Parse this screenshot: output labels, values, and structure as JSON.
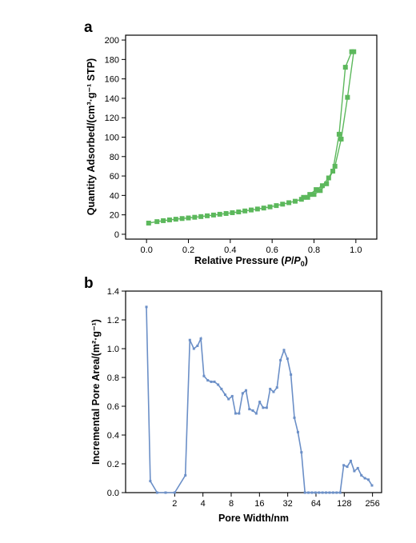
{
  "chart_data": [
    {
      "panel": "a",
      "type": "line",
      "xlabel_parts": [
        "Relative Pressure (",
        "P",
        "/",
        "P",
        "0",
        ")"
      ],
      "ylabel": "Quantity Adsorbed/(cm³·g⁻¹ STP)",
      "xlim": [
        -0.1,
        1.1
      ],
      "ylim": [
        -5,
        205
      ],
      "xticks": [
        0.0,
        0.2,
        0.4,
        0.6,
        0.8,
        1.0
      ],
      "xtick_labels": [
        "0.0",
        "0.2",
        "0.4",
        "0.6",
        "0.8",
        "1.0"
      ],
      "yticks": [
        0,
        20,
        40,
        60,
        80,
        100,
        120,
        140,
        160,
        180,
        200
      ],
      "ytick_labels": [
        "0",
        "20",
        "40",
        "60",
        "80",
        "100",
        "120",
        "140",
        "160",
        "180",
        "200"
      ],
      "color": "#5cb85c",
      "series": [
        {
          "x": [
            0.01,
            0.05,
            0.08,
            0.11,
            0.14,
            0.17,
            0.2,
            0.23,
            0.26,
            0.29,
            0.32,
            0.35,
            0.38,
            0.41,
            0.44,
            0.47,
            0.5,
            0.53,
            0.56,
            0.59,
            0.62,
            0.65,
            0.68,
            0.71,
            0.74,
            0.77,
            0.8,
            0.83,
            0.86,
            0.89,
            0.92,
            0.95,
            0.98
          ],
          "y": [
            11.5,
            13,
            14,
            14.8,
            15.5,
            16.2,
            16.8,
            17.5,
            18.2,
            19,
            19.8,
            20.6,
            21.4,
            22.2,
            23,
            24,
            25,
            26,
            27,
            28.2,
            29.5,
            31,
            32.5,
            34,
            36,
            38,
            41,
            45,
            52,
            65,
            103,
            172,
            188
          ]
        },
        {
          "x": [
            0.99,
            0.96,
            0.93,
            0.9,
            0.87,
            0.84,
            0.81,
            0.78,
            0.75
          ],
          "y": [
            188,
            141,
            98,
            70,
            58,
            50,
            46,
            41,
            38
          ]
        }
      ]
    },
    {
      "panel": "b",
      "type": "line",
      "xlabel": "Pore Width/nm",
      "ylabel": "Incremental Pore Area/(m²·g⁻¹)",
      "xscale": "log2",
      "xlim": [
        0.6,
        320
      ],
      "ylim": [
        0,
        1.4
      ],
      "xticks": [
        2,
        4,
        8,
        16,
        32,
        64,
        128,
        256
      ],
      "xtick_labels": [
        "2",
        "4",
        "8",
        "16",
        "32",
        "64",
        "128",
        "256"
      ],
      "yticks": [
        0.0,
        0.2,
        0.4,
        0.6,
        0.8,
        1.0,
        1.2,
        1.4
      ],
      "ytick_labels": [
        "0.0",
        "0.2",
        "0.4",
        "0.6",
        "0.8",
        "1.0",
        "1.2",
        "1.4"
      ],
      "color": "#6b8fc7",
      "series": [
        {
          "x": [
            1.0,
            1.1,
            1.3,
            1.6,
            2.0,
            2.6,
            2.9,
            3.2,
            3.5,
            3.8,
            4.1,
            4.5,
            4.9,
            5.3,
            5.8,
            6.3,
            6.9,
            7.5,
            8.2,
            8.9,
            9.7,
            10.6,
            11.5,
            12.5,
            13.6,
            14.8,
            16.1,
            17.5,
            19.1,
            20.8,
            22.6,
            24.6,
            26.8,
            29.2,
            31.8,
            34.6,
            37.7,
            41.1,
            44.8,
            48.8,
            53.2,
            58,
            63.2,
            68.9,
            75.1,
            81.9,
            89.3,
            97.4,
            106.2,
            115.8,
            126.3,
            137.7,
            150.2,
            163.8,
            178.6,
            194.8,
            212.5,
            231.7,
            252.7
          ],
          "y": [
            1.29,
            0.08,
            0.0,
            0.0,
            0.0,
            0.12,
            1.06,
            1.0,
            1.02,
            1.07,
            0.81,
            0.78,
            0.77,
            0.77,
            0.75,
            0.72,
            0.68,
            0.65,
            0.67,
            0.55,
            0.55,
            0.69,
            0.71,
            0.58,
            0.57,
            0.55,
            0.63,
            0.59,
            0.59,
            0.72,
            0.7,
            0.73,
            0.92,
            0.99,
            0.93,
            0.82,
            0.52,
            0.42,
            0.28,
            0.0,
            0.0,
            0.0,
            0.0,
            0.0,
            0.0,
            0.0,
            0.0,
            0.0,
            0.0,
            0.0,
            0.19,
            0.18,
            0.22,
            0.15,
            0.17,
            0.12,
            0.1,
            0.09,
            0.05
          ]
        }
      ]
    }
  ],
  "panel_labels": [
    "a",
    "b"
  ]
}
